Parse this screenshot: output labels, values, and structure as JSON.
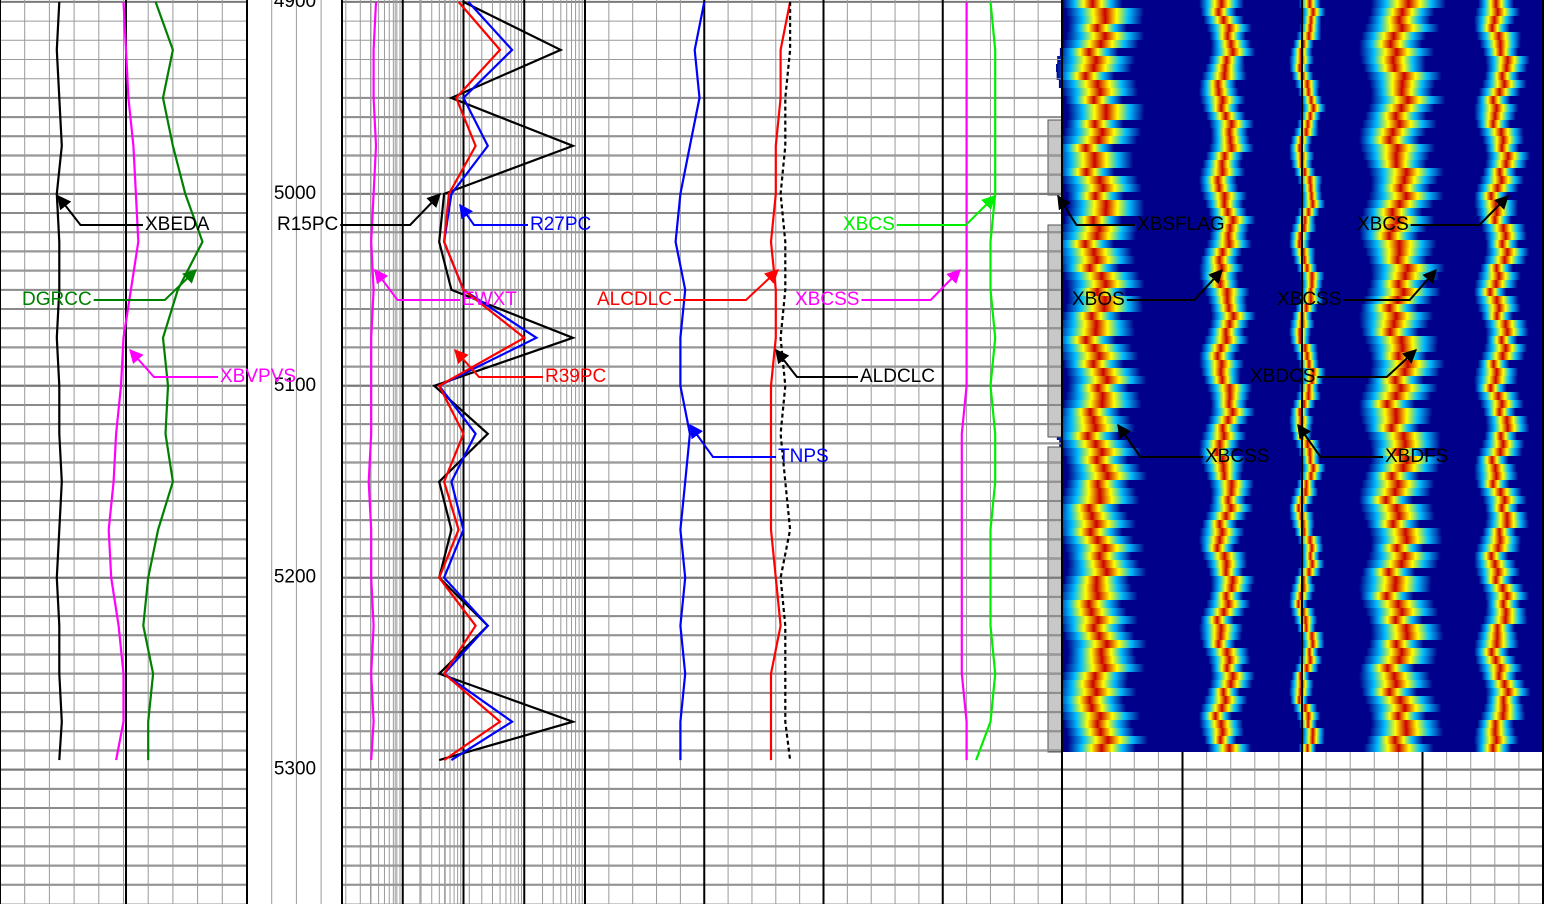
{
  "chart_data": {
    "type": "well-log",
    "ylim": [
      4899,
      5370
    ],
    "yticks": [
      4900,
      5000,
      5100,
      5200,
      5300
    ],
    "x": [
      4900,
      4925,
      4950,
      4975,
      5000,
      5025,
      5050,
      5075,
      5100,
      5125,
      5150,
      5175,
      5200,
      5225,
      5250,
      5275,
      5295
    ],
    "series": [
      {
        "name": "XBEDA",
        "color": "#000000",
        "track": 0,
        "values": [
          0.24,
          0.23,
          0.24,
          0.25,
          0.23,
          0.24,
          0.24,
          0.23,
          0.24,
          0.24,
          0.25,
          0.24,
          0.23,
          0.24,
          0.24,
          0.25,
          0.24
        ]
      },
      {
        "name": "XBVPVS",
        "color": "#ff00ff",
        "track": 0,
        "values": [
          0.5,
          0.51,
          0.52,
          0.54,
          0.55,
          0.56,
          0.53,
          0.5,
          0.49,
          0.47,
          0.46,
          0.44,
          0.45,
          0.48,
          0.5,
          0.5,
          0.47
        ]
      },
      {
        "name": "DGRCC",
        "color": "#008000",
        "track": 0,
        "values": [
          0.63,
          0.7,
          0.66,
          0.7,
          0.75,
          0.82,
          0.72,
          0.66,
          0.68,
          0.67,
          0.7,
          0.64,
          0.6,
          0.58,
          0.62,
          0.6,
          0.6
        ]
      },
      {
        "name": "EWXT",
        "color": "#ff00ff",
        "track": 1,
        "values": [
          0.14,
          0.13,
          0.13,
          0.14,
          0.13,
          0.12,
          0.13,
          0.12,
          0.12,
          0.12,
          0.11,
          0.12,
          0.12,
          0.13,
          0.12,
          0.13,
          0.12
        ]
      },
      {
        "name": "R15PC",
        "color": "#000000",
        "track": 1,
        "values": [
          0.5,
          0.9,
          0.45,
          0.95,
          0.42,
          0.4,
          0.45,
          0.95,
          0.38,
          0.6,
          0.4,
          0.45,
          0.4,
          0.6,
          0.4,
          0.95,
          0.4
        ]
      },
      {
        "name": "R27PC",
        "color": "#0000ff",
        "track": 1,
        "values": [
          0.52,
          0.7,
          0.5,
          0.6,
          0.45,
          0.42,
          0.5,
          0.8,
          0.4,
          0.55,
          0.45,
          0.5,
          0.42,
          0.6,
          0.42,
          0.7,
          0.45
        ]
      },
      {
        "name": "R39PC",
        "color": "#ff0000",
        "track": 1,
        "values": [
          0.48,
          0.65,
          0.47,
          0.55,
          0.44,
          0.42,
          0.5,
          0.75,
          0.4,
          0.5,
          0.42,
          0.48,
          0.4,
          0.55,
          0.42,
          0.65,
          0.42
        ]
      },
      {
        "name": "TNPS",
        "color": "#0000ff",
        "track": 2,
        "values": [
          0.25,
          0.23,
          0.24,
          0.22,
          0.2,
          0.19,
          0.21,
          0.2,
          0.2,
          0.22,
          0.21,
          0.2,
          0.21,
          0.2,
          0.21,
          0.2,
          0.2
        ]
      },
      {
        "name": "ALCDLC",
        "color": "#ff0000",
        "track": 2,
        "values": [
          0.43,
          0.41,
          0.41,
          0.4,
          0.4,
          0.39,
          0.4,
          0.4,
          0.39,
          0.39,
          0.39,
          0.39,
          0.4,
          0.41,
          0.39,
          0.39,
          0.39
        ]
      },
      {
        "name": "ALDCLC",
        "color": "#000000",
        "track": 2,
        "values": [
          0.43,
          0.43,
          0.42,
          0.42,
          0.41,
          0.42,
          0.42,
          0.41,
          0.42,
          0.41,
          0.42,
          0.43,
          0.41,
          0.42,
          0.42,
          0.42,
          0.43
        ]
      },
      {
        "name": "XBCSS",
        "color": "#ff00ff",
        "track": 2,
        "values": [
          0.8,
          0.8,
          0.8,
          0.8,
          0.8,
          0.8,
          0.8,
          0.8,
          0.8,
          0.79,
          0.79,
          0.79,
          0.79,
          0.79,
          0.79,
          0.8,
          0.8
        ]
      },
      {
        "name": "XBCS",
        "color": "#00ee00",
        "track": 2,
        "values": [
          0.85,
          0.86,
          0.86,
          0.86,
          0.86,
          0.85,
          0.85,
          0.86,
          0.85,
          0.86,
          0.86,
          0.85,
          0.85,
          0.85,
          0.86,
          0.85,
          0.82
        ]
      }
    ],
    "annotations": [
      {
        "text": "XBEDA",
        "color": "#000000"
      },
      {
        "text": "DGRCC",
        "color": "#008000"
      },
      {
        "text": "XBVPVS",
        "color": "#ff00ff"
      },
      {
        "text": "R15PC",
        "color": "#000000"
      },
      {
        "text": "R27PC",
        "color": "#0000ff"
      },
      {
        "text": "EWXT",
        "color": "#ff00ff"
      },
      {
        "text": "R39PC",
        "color": "#ff0000"
      },
      {
        "text": "ALCDLC",
        "color": "#ff0000"
      },
      {
        "text": "XBCSS",
        "color": "#ff00ff"
      },
      {
        "text": "ALDCLC",
        "color": "#000000"
      },
      {
        "text": "TNPS",
        "color": "#0000ff"
      },
      {
        "text": "XBCS",
        "color": "#00ee00"
      },
      {
        "text": "XBSFLAG",
        "color": "#000000"
      },
      {
        "text": "XBCS",
        "color": "#000000"
      },
      {
        "text": "XBOS",
        "color": "#000000"
      },
      {
        "text": "XBCSS",
        "color": "#000000"
      },
      {
        "text": "XBDCS",
        "color": "#000000"
      },
      {
        "text": "XBCSS",
        "color": "#000000"
      },
      {
        "text": "XBDFS",
        "color": "#000000"
      }
    ]
  }
}
